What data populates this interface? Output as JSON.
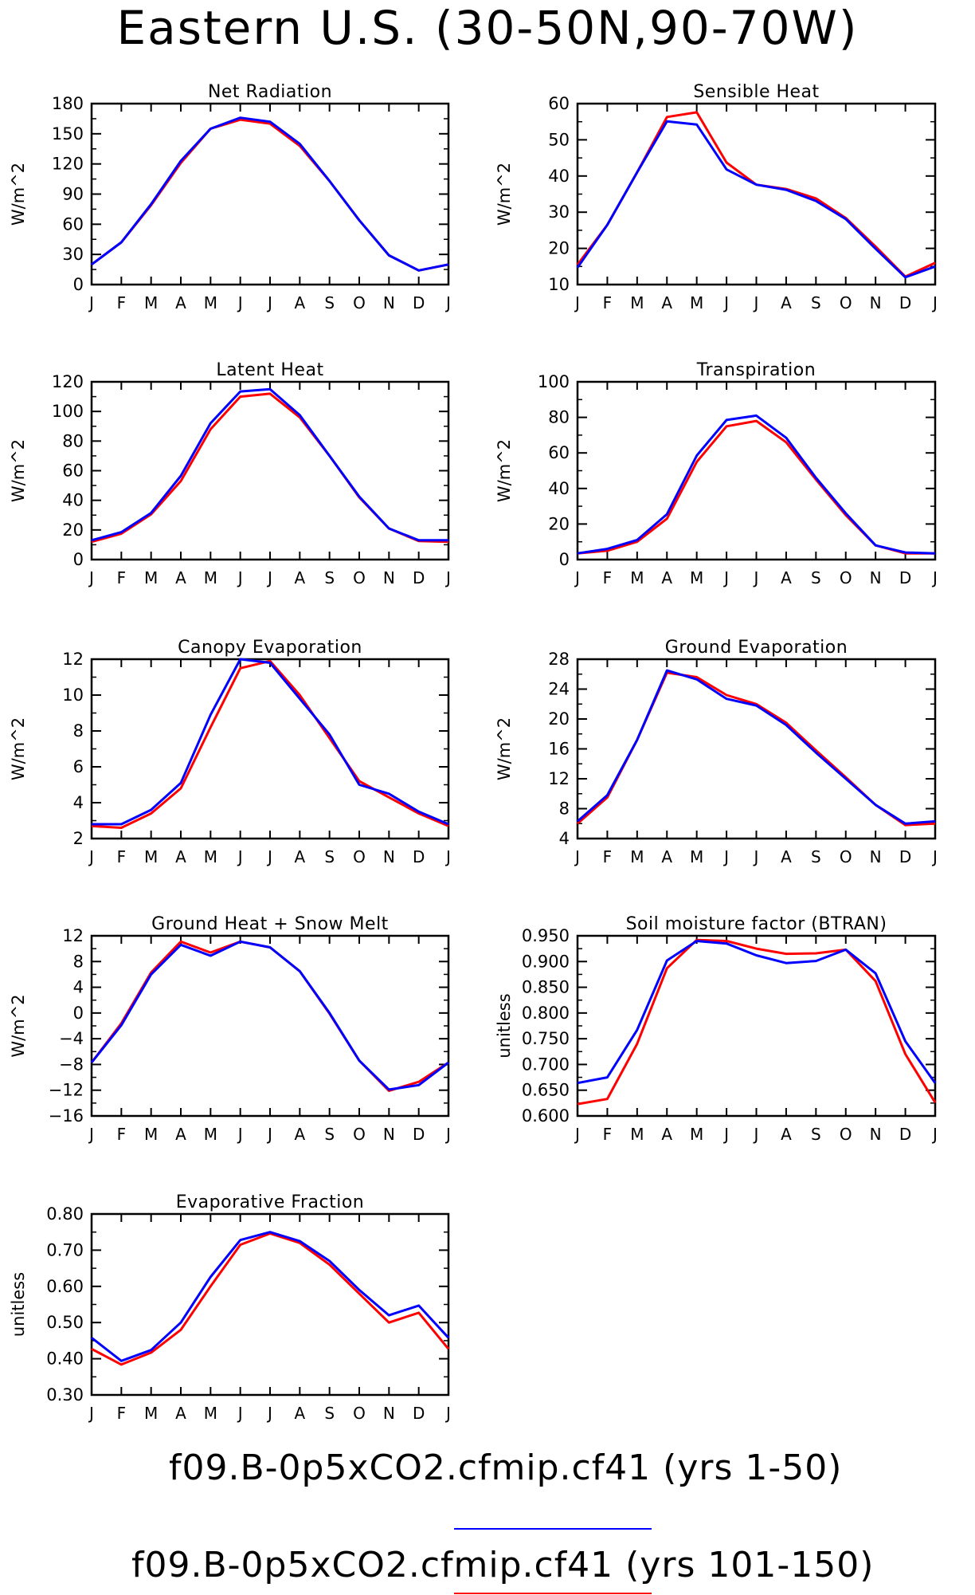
{
  "title": "Eastern U.S. (30-50N,90-70W)",
  "legend": [
    {
      "label": "f09.B-0p5xCO2.cfmip.cf41 (yrs 1-50)",
      "color": "#0000ff"
    },
    {
      "label": "f09.B-0p5xCO2.cfmip.cf41 (yrs 101-150)",
      "color": "#ff0000"
    }
  ],
  "chart_data": [
    {
      "type": "line",
      "title": "Net Radiation",
      "ylabel": "W/m^2",
      "categories": [
        "J",
        "F",
        "M",
        "A",
        "M",
        "J",
        "J",
        "A",
        "S",
        "O",
        "N",
        "D",
        "J"
      ],
      "ylim": [
        0,
        180
      ],
      "yticks": [
        "0",
        "30",
        "60",
        "90",
        "120",
        "150",
        "180"
      ],
      "series": [
        {
          "color": "#ff0000",
          "values": [
            20,
            42,
            79,
            121,
            155,
            164,
            160,
            138,
            103,
            64,
            29,
            14,
            20
          ]
        },
        {
          "color": "#0000ff",
          "values": [
            20,
            42,
            80,
            123,
            155,
            166,
            162,
            140,
            103,
            64,
            29,
            14,
            20
          ]
        }
      ]
    },
    {
      "type": "line",
      "title": "Sensible Heat",
      "ylabel": "W/m^2",
      "categories": [
        "J",
        "F",
        "M",
        "A",
        "M",
        "J",
        "J",
        "A",
        "S",
        "O",
        "N",
        "D",
        "J"
      ],
      "ylim": [
        10,
        60
      ],
      "yticks": [
        "10",
        "20",
        "30",
        "40",
        "50",
        "60"
      ],
      "series": [
        {
          "color": "#ff0000",
          "values": [
            15.5,
            26.5,
            41,
            56.3,
            57.6,
            43.7,
            37.6,
            36.4,
            33.8,
            28.4,
            20.5,
            12.2,
            16
          ]
        },
        {
          "color": "#0000ff",
          "values": [
            14.7,
            26.5,
            41,
            55.1,
            54.2,
            41.8,
            37.6,
            36.2,
            33.1,
            28.1,
            19.9,
            12,
            15
          ]
        }
      ]
    },
    {
      "type": "line",
      "title": "Latent Heat",
      "ylabel": "W/m^2",
      "categories": [
        "J",
        "F",
        "M",
        "A",
        "M",
        "J",
        "J",
        "A",
        "S",
        "O",
        "N",
        "D",
        "J"
      ],
      "ylim": [
        0,
        120
      ],
      "yticks": [
        "0",
        "20",
        "40",
        "60",
        "80",
        "100",
        "120"
      ],
      "series": [
        {
          "color": "#ff0000",
          "values": [
            12,
            17.5,
            30.5,
            53,
            88,
            110,
            112,
            96,
            70,
            42,
            21,
            12.5,
            12
          ]
        },
        {
          "color": "#0000ff",
          "values": [
            13,
            18.5,
            31.5,
            56.5,
            92,
            113.5,
            115,
            97.5,
            70,
            42.5,
            21,
            13,
            13
          ]
        }
      ]
    },
    {
      "type": "line",
      "title": "Transpiration",
      "ylabel": "W/m^2",
      "categories": [
        "J",
        "F",
        "M",
        "A",
        "M",
        "J",
        "J",
        "A",
        "S",
        "O",
        "N",
        "D",
        "J"
      ],
      "ylim": [
        0,
        100
      ],
      "yticks": [
        "0",
        "20",
        "40",
        "60",
        "80",
        "100"
      ],
      "series": [
        {
          "color": "#ff0000",
          "values": [
            3.5,
            5,
            10,
            23,
            55,
            75,
            78,
            66,
            45,
            25,
            8,
            3.5,
            3.5
          ]
        },
        {
          "color": "#0000ff",
          "values": [
            3.5,
            6,
            11,
            25.5,
            58.5,
            78.5,
            81,
            68.5,
            46,
            26,
            8,
            4,
            3.5
          ]
        }
      ]
    },
    {
      "type": "line",
      "title": "Canopy Evaporation",
      "ylabel": "W/m^2",
      "categories": [
        "J",
        "F",
        "M",
        "A",
        "M",
        "J",
        "J",
        "A",
        "S",
        "O",
        "N",
        "D",
        "J"
      ],
      "ylim": [
        2,
        12
      ],
      "yticks": [
        "2",
        "4",
        "6",
        "8",
        "10",
        "12"
      ],
      "series": [
        {
          "color": "#ff0000",
          "values": [
            2.7,
            2.6,
            3.4,
            4.8,
            8.2,
            11.5,
            11.9,
            10,
            7.6,
            5.2,
            4.3,
            3.4,
            2.7
          ]
        },
        {
          "color": "#0000ff",
          "values": [
            2.8,
            2.8,
            3.6,
            5.1,
            8.9,
            12,
            11.8,
            9.8,
            7.8,
            5,
            4.5,
            3.5,
            2.8
          ]
        }
      ]
    },
    {
      "type": "line",
      "title": "Ground Evaporation",
      "ylabel": "W/m^2",
      "categories": [
        "J",
        "F",
        "M",
        "A",
        "M",
        "J",
        "J",
        "A",
        "S",
        "O",
        "N",
        "D",
        "J"
      ],
      "ylim": [
        4,
        28
      ],
      "yticks": [
        "4",
        "8",
        "12",
        "16",
        "20",
        "24",
        "28"
      ],
      "series": [
        {
          "color": "#ff0000",
          "values": [
            6,
            9.5,
            17.2,
            26.2,
            25.6,
            23.2,
            22,
            19.5,
            15.8,
            12.2,
            8.5,
            5.8,
            6
          ]
        },
        {
          "color": "#0000ff",
          "values": [
            6.3,
            9.8,
            17.2,
            26.5,
            25.3,
            22.7,
            21.8,
            19.2,
            15.5,
            12,
            8.5,
            6,
            6.3
          ]
        }
      ]
    },
    {
      "type": "line",
      "title": "Ground Heat + Snow Melt",
      "ylabel": "W/m^2",
      "categories": [
        "J",
        "F",
        "M",
        "A",
        "M",
        "J",
        "J",
        "A",
        "S",
        "O",
        "N",
        "D",
        "J"
      ],
      "ylim": [
        -16,
        12
      ],
      "yticks": [
        "-16",
        "-12",
        "-8",
        "-4",
        "0",
        "4",
        "8",
        "12"
      ],
      "series": [
        {
          "color": "#ff0000",
          "values": [
            -7.7,
            -1.6,
            6.3,
            11.1,
            9.4,
            11.1,
            10.2,
            6.5,
            -0.1,
            -7.4,
            -12.1,
            -10.7,
            -7.7
          ]
        },
        {
          "color": "#0000ff",
          "values": [
            -7.7,
            -1.9,
            6,
            10.6,
            8.9,
            11.1,
            10.2,
            6.5,
            0,
            -7.4,
            -11.9,
            -11.2,
            -7.7
          ]
        }
      ]
    },
    {
      "type": "line",
      "title": "Soil moisture factor (BTRAN)",
      "ylabel": "unitless",
      "categories": [
        "J",
        "F",
        "M",
        "A",
        "M",
        "J",
        "J",
        "A",
        "S",
        "O",
        "N",
        "D",
        "J"
      ],
      "ylim": [
        0.6,
        0.95
      ],
      "yticks": [
        "0.600",
        "0.650",
        "0.700",
        "0.750",
        "0.800",
        "0.850",
        "0.900",
        "0.950"
      ],
      "series": [
        {
          "color": "#ff0000",
          "values": [
            0.623,
            0.633,
            0.74,
            0.887,
            0.942,
            0.94,
            0.925,
            0.915,
            0.916,
            0.923,
            0.862,
            0.72,
            0.626
          ]
        },
        {
          "color": "#0000ff",
          "values": [
            0.664,
            0.675,
            0.767,
            0.902,
            0.94,
            0.935,
            0.912,
            0.897,
            0.901,
            0.923,
            0.877,
            0.745,
            0.664
          ]
        }
      ]
    },
    {
      "type": "line",
      "title": "Evaporative Fraction",
      "ylabel": "unitless",
      "categories": [
        "J",
        "F",
        "M",
        "A",
        "M",
        "J",
        "J",
        "A",
        "S",
        "O",
        "N",
        "D",
        "J"
      ],
      "ylim": [
        0.3,
        0.8
      ],
      "yticks": [
        "0.30",
        "0.40",
        "0.50",
        "0.60",
        "0.70",
        "0.80"
      ],
      "series": [
        {
          "color": "#ff0000",
          "values": [
            0.427,
            0.384,
            0.417,
            0.48,
            0.6,
            0.715,
            0.746,
            0.72,
            0.66,
            0.58,
            0.5,
            0.527,
            0.427
          ]
        },
        {
          "color": "#0000ff",
          "values": [
            0.458,
            0.394,
            0.424,
            0.5,
            0.626,
            0.728,
            0.75,
            0.725,
            0.67,
            0.59,
            0.52,
            0.547,
            0.458
          ]
        }
      ]
    }
  ]
}
